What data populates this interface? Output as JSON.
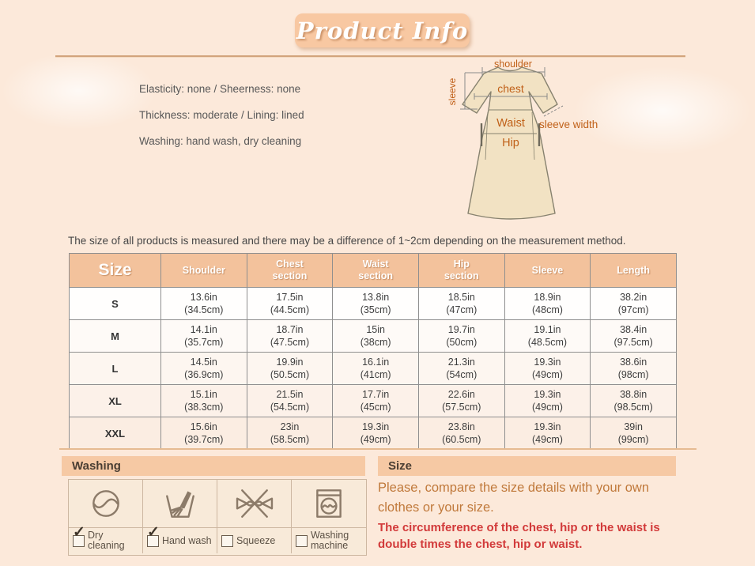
{
  "header": {
    "title": "Product Info"
  },
  "details": {
    "lines": [
      "Elasticity: none / Sheerness: none",
      "Thickness: moderate / Lining: lined",
      "Washing: hand wash, dry cleaning"
    ]
  },
  "diagram": {
    "labels": {
      "shoulder": "shoulder",
      "sleeve": "sleeve",
      "chest": "chest",
      "waist": "Waist",
      "hip": "Hip",
      "sleeve_width": "sleeve width"
    }
  },
  "note": "The size of all products is measured and there may be a difference of 1~2cm depending on the measurement method.",
  "size_table": {
    "columns": [
      "Size",
      "Shoulder",
      "Chest section",
      "Waist section",
      "Hip section",
      "Sleeve",
      "Length"
    ],
    "rows": [
      {
        "size": "S",
        "cells": [
          [
            "13.6in",
            "(34.5cm)"
          ],
          [
            "17.5in",
            "(44.5cm)"
          ],
          [
            "13.8in",
            "(35cm)"
          ],
          [
            "18.5in",
            "(47cm)"
          ],
          [
            "18.9in",
            "(48cm)"
          ],
          [
            "38.2in",
            "(97cm)"
          ]
        ]
      },
      {
        "size": "M",
        "cells": [
          [
            "14.1in",
            "(35.7cm)"
          ],
          [
            "18.7in",
            "(47.5cm)"
          ],
          [
            "15in",
            "(38cm)"
          ],
          [
            "19.7in",
            "(50cm)"
          ],
          [
            "19.1in",
            "(48.5cm)"
          ],
          [
            "38.4in",
            "(97.5cm)"
          ]
        ]
      },
      {
        "size": "L",
        "cells": [
          [
            "14.5in",
            "(36.9cm)"
          ],
          [
            "19.9in",
            "(50.5cm)"
          ],
          [
            "16.1in",
            "(41cm)"
          ],
          [
            "21.3in",
            "(54cm)"
          ],
          [
            "19.3in",
            "(49cm)"
          ],
          [
            "38.6in",
            "(98cm)"
          ]
        ]
      },
      {
        "size": "XL",
        "cells": [
          [
            "15.1in",
            "(38.3cm)"
          ],
          [
            "21.5in",
            "(54.5cm)"
          ],
          [
            "17.7in",
            "(45cm)"
          ],
          [
            "22.6in",
            "(57.5cm)"
          ],
          [
            "19.3in",
            "(49cm)"
          ],
          [
            "38.8in",
            "(98.5cm)"
          ]
        ]
      },
      {
        "size": "XXL",
        "cells": [
          [
            "15.6in",
            "(39.7cm)"
          ],
          [
            "23in",
            "(58.5cm)"
          ],
          [
            "19.3in",
            "(49cm)"
          ],
          [
            "23.8in",
            "(60.5cm)"
          ],
          [
            "19.3in",
            "(49cm)"
          ],
          [
            "39in",
            "(99cm)"
          ]
        ]
      }
    ]
  },
  "washing": {
    "title": "Washing",
    "options": [
      {
        "label": "Dry cleaning",
        "checked": true
      },
      {
        "label": "Hand wash",
        "checked": true
      },
      {
        "label": "Squeeze",
        "checked": false
      },
      {
        "label": "Washing machine",
        "checked": false
      }
    ]
  },
  "size_info": {
    "title": "Size",
    "note_primary": "Please, compare the size details with your own clothes or your size.",
    "note_secondary": "The circumference of the chest, hip or the waist is double times the chest, hip or waist."
  },
  "colors": {
    "page_bg": "#fce9da",
    "accent_peach": "#f6c9a4",
    "table_header": "#f3c29c",
    "rule": "#d2a47c",
    "label_orange": "#c06018",
    "note_orange": "#c0793b",
    "alert_red": "#d23a3a"
  }
}
